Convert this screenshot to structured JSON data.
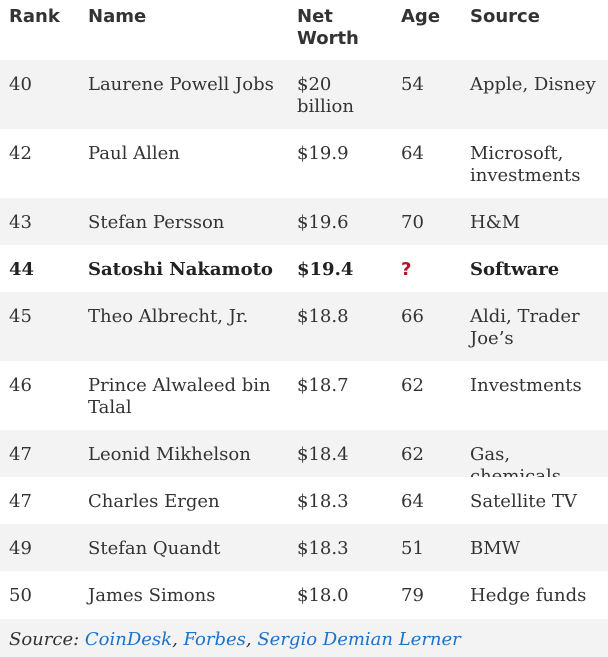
{
  "headers": {
    "rank": "Rank",
    "name": "Name",
    "net_worth": "Net Worth",
    "age": "Age",
    "source": "Source"
  },
  "rows": [
    {
      "rank": "40",
      "name": "Laurene Powell Jobs",
      "net_worth": "$20 billion",
      "age": "54",
      "source": "Apple, Disney"
    },
    {
      "rank": "42",
      "name": "Paul Allen",
      "net_worth": "$19.9",
      "age": "64",
      "source": "Microsoft, investments"
    },
    {
      "rank": "43",
      "name": "Stefan Persson",
      "net_worth": "$19.6",
      "age": "70",
      "source": "H&M"
    },
    {
      "rank": "44",
      "name": "Satoshi Nakamoto",
      "net_worth": "$19.4",
      "age": "?",
      "source": "Software"
    },
    {
      "rank": "45",
      "name": "Theo Albrecht, Jr.",
      "net_worth": "$18.8",
      "age": "66",
      "source": "Aldi, Trader Joe’s"
    },
    {
      "rank": "46",
      "name": "Prince Alwaleed bin Talal",
      "net_worth": "$18.7",
      "age": "62",
      "source": "Investments"
    },
    {
      "rank": "47",
      "name": "Leonid Mikhelson",
      "net_worth": "$18.4",
      "age": "62",
      "source": "Gas, chemicals"
    },
    {
      "rank": "47",
      "name": "Charles Ergen",
      "net_worth": "$18.3",
      "age": "64",
      "source": "Satellite TV"
    },
    {
      "rank": "49",
      "name": "Stefan Quandt",
      "net_worth": "$18.3",
      "age": "51",
      "source": "BMW"
    },
    {
      "rank": "50",
      "name": "James Simons",
      "net_worth": "$18.0",
      "age": "79",
      "source": "Hedge funds"
    }
  ],
  "source_line": {
    "prefix": "Source: ",
    "links": [
      "CoinDesk",
      "Forbes",
      "Sergio Demian Lerner"
    ],
    "separator": ", "
  },
  "colors": {
    "link": "#1a73c8",
    "question_mark": "#b0182a",
    "stripe": "#f3f3f3"
  }
}
